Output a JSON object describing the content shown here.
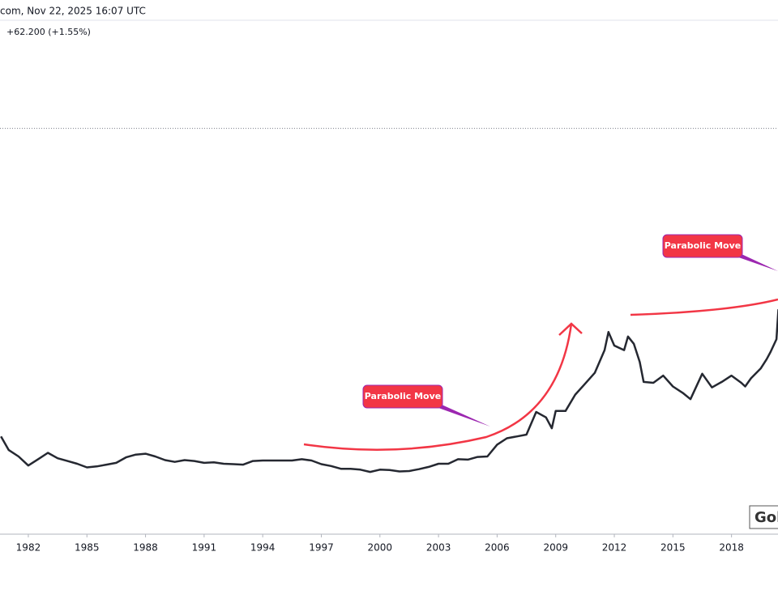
{
  "chart_data": {
    "type": "line",
    "header": "com, Nov 22, 2025 16:07 UTC",
    "change": "+62.200 (+1.55%)",
    "watermark": "Gol",
    "annotations": [
      "Parabolic Move",
      "Parabolic Move"
    ],
    "series": [
      {
        "color": "#252831",
        "x": [
          1980.6,
          1981,
          1981.5,
          1982,
          1982.5,
          1983,
          1983.5,
          1984,
          1984.5,
          1985,
          1985.5,
          1986,
          1986.5,
          1987,
          1987.5,
          1988,
          1988.5,
          1989,
          1989.5,
          1990,
          1990.5,
          1991,
          1991.5,
          1992,
          1992.5,
          1993,
          1993.5,
          1994,
          1994.5,
          1995,
          1995.5,
          1996,
          1996.5,
          1997,
          1997.5,
          1998,
          1998.5,
          1999,
          1999.5,
          2000,
          2000.5,
          2001,
          2001.5,
          2002,
          2002.5,
          2003,
          2003.5,
          2004,
          2004.5,
          2005,
          2005.5,
          2006,
          2006.5,
          2007,
          2007.5,
          2008,
          2008.5,
          2008.8,
          2009,
          2009.5,
          2010,
          2010.5,
          2011,
          2011.5,
          2011.7,
          2012,
          2012.5,
          2012.7,
          2013,
          2013.3,
          2013.5,
          2014,
          2014.5,
          2015,
          2015.5,
          2015.9,
          2016.5,
          2017,
          2017.5,
          2018,
          2018.5,
          2018.7,
          2019,
          2019.5,
          2019.8,
          2020,
          2020.3,
          2020.4
        ],
        "values": [
          650,
          500,
          430,
          330,
          400,
          470,
          410,
          380,
          350,
          310,
          320,
          340,
          360,
          420,
          450,
          460,
          430,
          390,
          370,
          390,
          380,
          360,
          365,
          350,
          345,
          340,
          380,
          385,
          385,
          385,
          385,
          400,
          385,
          345,
          325,
          295,
          295,
          285,
          260,
          285,
          280,
          265,
          270,
          290,
          315,
          350,
          350,
          400,
          395,
          425,
          430,
          560,
          630,
          650,
          670,
          920,
          860,
          740,
          930,
          930,
          1110,
          1230,
          1350,
          1600,
          1800,
          1650,
          1600,
          1750,
          1670,
          1470,
          1250,
          1240,
          1320,
          1200,
          1130,
          1060,
          1340,
          1190,
          1250,
          1320,
          1240,
          1200,
          1290,
          1400,
          1500,
          1580,
          1720,
          2050
        ]
      }
    ],
    "xlim": [
      1980.55,
      2020.38
    ],
    "xticks": [
      1982,
      1985,
      1988,
      1991,
      1994,
      1997,
      2000,
      2003,
      2006,
      2009,
      2012,
      2015,
      2018
    ],
    "ylim": [
      -425,
      5230
    ],
    "price_line": 4040
  }
}
